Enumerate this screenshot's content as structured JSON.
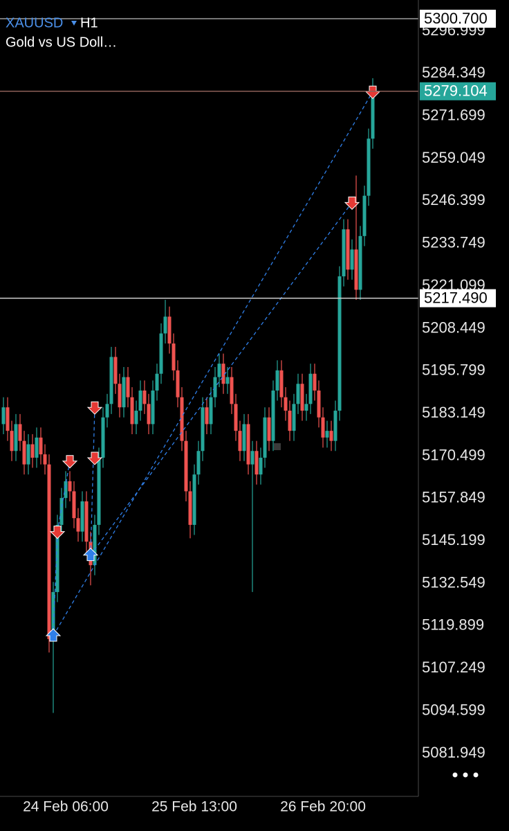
{
  "chart_data": {
    "type": "candlestick",
    "title": "XAUUSD",
    "timeframe": "H1",
    "subtitle": "Gold vs US Doll…",
    "categories": [
      null,
      null,
      null,
      null,
      null,
      null,
      null,
      null,
      null,
      null,
      null,
      null,
      null,
      null,
      null,
      "24 Feb 06:00",
      null,
      null,
      null,
      null,
      null,
      null,
      null,
      null,
      null,
      null,
      null,
      null,
      null,
      null,
      null,
      null,
      null,
      null,
      null,
      null,
      null,
      null,
      null,
      null,
      null,
      null,
      null,
      null,
      null,
      null,
      "25 Feb 13:00",
      null,
      null,
      null,
      null,
      null,
      null,
      null,
      null,
      null,
      null,
      null,
      null,
      null,
      null,
      null,
      null,
      null,
      null,
      null,
      null,
      null,
      null,
      null,
      null,
      null,
      null,
      null,
      null,
      null,
      null,
      "26 Feb 20:00",
      null,
      null,
      null,
      null,
      null,
      null,
      null,
      null,
      null,
      null,
      null,
      null
    ],
    "open": [
      5180,
      5185,
      5178,
      5172,
      5180,
      5175,
      5168,
      5174,
      5170,
      5176,
      5171,
      5168,
      5116,
      5130,
      5150,
      5158,
      5163,
      5160,
      5152,
      5148,
      5157,
      5145,
      5138,
      5150,
      5170,
      5182,
      5186,
      5200,
      5192,
      5185,
      5194,
      5188,
      5180,
      5184,
      5190,
      5186,
      5180,
      5190,
      5195,
      5207,
      5212,
      5204,
      5196,
      5188,
      5175,
      5160,
      5150,
      5165,
      5172,
      5185,
      5180,
      5188,
      5194,
      5198,
      5192,
      5194,
      5186,
      5178,
      5172,
      5180,
      5168,
      5172,
      5165,
      5170,
      5182,
      5175,
      5190,
      5196,
      5188,
      5184,
      5178,
      5186,
      5192,
      5184,
      5186,
      5195,
      5190,
      5182,
      5176,
      5178,
      5175,
      5184,
      5224,
      5238,
      5226,
      5232,
      5220,
      5236,
      5248,
      5265
    ],
    "high": [
      5188,
      5188,
      5181,
      5183,
      5183,
      5178,
      5177,
      5177,
      5179,
      5179,
      5174,
      5171,
      5133,
      5153,
      5161,
      5166,
      5166,
      5163,
      5155,
      5160,
      5160,
      5148,
      5153,
      5173,
      5185,
      5189,
      5203,
      5203,
      5195,
      5197,
      5197,
      5191,
      5187,
      5193,
      5193,
      5189,
      5193,
      5198,
      5210,
      5217,
      5215,
      5207,
      5199,
      5191,
      5178,
      5163,
      5168,
      5175,
      5188,
      5188,
      5191,
      5197,
      5201,
      5201,
      5197,
      5197,
      5189,
      5181,
      5183,
      5183,
      5175,
      5175,
      5173,
      5185,
      5185,
      5193,
      5199,
      5199,
      5191,
      5187,
      5189,
      5195,
      5195,
      5189,
      5198,
      5198,
      5193,
      5185,
      5181,
      5181,
      5187,
      5227,
      5241,
      5241,
      5235,
      5254,
      5239,
      5251,
      5268,
      5283
    ],
    "low": [
      5177,
      5175,
      5169,
      5169,
      5172,
      5165,
      5165,
      5167,
      5167,
      5168,
      5165,
      5112,
      5094,
      5127,
      5147,
      5155,
      5157,
      5149,
      5145,
      5145,
      5142,
      5132,
      5135,
      5147,
      5167,
      5179,
      5183,
      5189,
      5182,
      5182,
      5185,
      5177,
      5177,
      5181,
      5183,
      5177,
      5177,
      5187,
      5192,
      5204,
      5201,
      5193,
      5185,
      5172,
      5157,
      5146,
      5147,
      5162,
      5169,
      5177,
      5177,
      5185,
      5191,
      5189,
      5189,
      5183,
      5175,
      5169,
      5169,
      5165,
      5130,
      5162,
      5162,
      5167,
      5172,
      5172,
      5187,
      5185,
      5181,
      5175,
      5175,
      5183,
      5181,
      5181,
      5183,
      5187,
      5179,
      5173,
      5173,
      5172,
      5172,
      5181,
      5221,
      5223,
      5223,
      5217,
      5217,
      5233,
      5245,
      5262
    ],
    "close": [
      5185,
      5178,
      5172,
      5180,
      5175,
      5168,
      5174,
      5170,
      5176,
      5171,
      5168,
      5116,
      5130,
      5150,
      5158,
      5163,
      5160,
      5152,
      5148,
      5157,
      5145,
      5138,
      5150,
      5170,
      5182,
      5186,
      5200,
      5192,
      5185,
      5194,
      5188,
      5180,
      5184,
      5190,
      5186,
      5180,
      5190,
      5195,
      5207,
      5212,
      5204,
      5196,
      5188,
      5175,
      5160,
      5150,
      5165,
      5172,
      5185,
      5180,
      5188,
      5194,
      5198,
      5192,
      5194,
      5186,
      5178,
      5172,
      5180,
      5168,
      5172,
      5165,
      5170,
      5182,
      5175,
      5190,
      5196,
      5188,
      5184,
      5178,
      5186,
      5192,
      5184,
      5186,
      5195,
      5190,
      5182,
      5176,
      5178,
      5175,
      5184,
      5224,
      5238,
      5226,
      5232,
      5220,
      5236,
      5248,
      5265,
      5279.104
    ],
    "up_color": "#26a69a",
    "down_color": "#ef5350",
    "ylim": [
      5069.16,
      5306.28
    ],
    "yticks": [
      5296.999,
      5284.349,
      5271.699,
      5259.049,
      5246.399,
      5233.749,
      5221.099,
      5208.449,
      5195.799,
      5183.149,
      5170.499,
      5157.849,
      5145.199,
      5132.549,
      5119.899,
      5107.249,
      5094.599,
      5081.949
    ],
    "price_lines": [
      {
        "value": 5300.7,
        "label": "5300.700",
        "line": "#9e9e9e",
        "box": "#ffffff",
        "ink": "#000000"
      },
      {
        "value": 5279.104,
        "line": "#8d6058",
        "box": "#26a69a",
        "ink": "#ffffff"
      },
      {
        "value": 5217.49,
        "label": "5217.490",
        "line": "#d0d0d0",
        "box": "#ffffff",
        "ink": "#000000"
      }
    ],
    "buy_color": "#2f7fe8",
    "sell_color": "#e53935",
    "buy_markers": [
      {
        "x": 12,
        "value": 5117
      },
      {
        "x": 21,
        "value": 5141
      }
    ],
    "sell_markers": [
      {
        "x": 13,
        "value": 5148
      },
      {
        "x": 16,
        "value": 5169
      },
      {
        "x": 22,
        "value": 5185
      },
      {
        "x": 22,
        "value": 5170
      },
      {
        "x": 84,
        "value": 5246
      },
      {
        "x": 89,
        "value": 5279
      }
    ],
    "trades": [
      {
        "open_x": 12,
        "open": 5117,
        "close_x": 89,
        "close": 5279
      },
      {
        "open_x": 21,
        "open": 5141,
        "close_x": 84,
        "close": 5246
      },
      {
        "open_x": 12,
        "open": 5117,
        "close_x": 13,
        "close": 5148
      },
      {
        "open_x": 13,
        "open": 5148,
        "close_x": 16,
        "close": 5169
      },
      {
        "open_x": 21,
        "open": 5141,
        "close_x": 22,
        "close": 5185
      }
    ]
  }
}
